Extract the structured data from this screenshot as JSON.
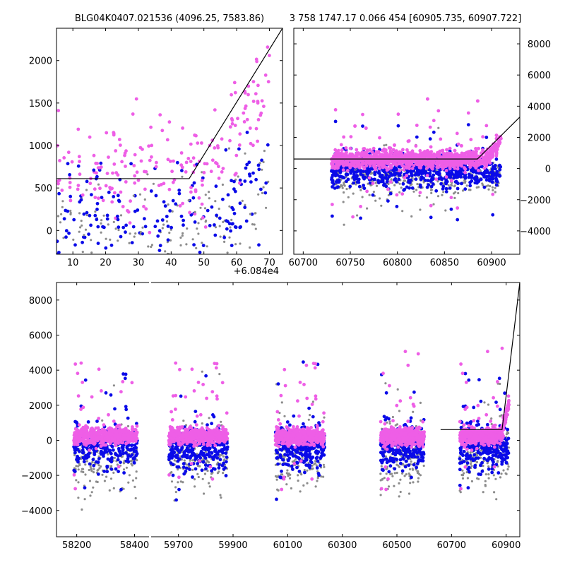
{
  "figure_title_left": "BLG04K0407.021536 (4096.25, 7583.86)",
  "figure_title_right": "3 758 1747.17 0.066 454 [60905.735, 60907.722]",
  "offset_text": "+6.084e4",
  "colors": {
    "pink": "#ee5ee6",
    "blue": "#0a0ae8",
    "gray": "#8c8c8c",
    "model": "#000000"
  },
  "chart_data": [
    {
      "id": "zoom",
      "type": "scatter",
      "title": "BLG04K0407.021536 (4096.25, 7583.86)",
      "xlim": [
        5,
        74
      ],
      "ylim": [
        -280,
        2380
      ],
      "x_offset": 60840,
      "xticks": [
        10,
        20,
        30,
        40,
        50,
        60,
        70
      ],
      "yticks": [
        0,
        500,
        1000,
        1500,
        2000
      ],
      "y_axis_side": "left",
      "model": {
        "x": [
          5,
          45.5,
          74
        ],
        "y": [
          610,
          610,
          2380
        ]
      }
    },
    {
      "id": "recent",
      "type": "scatter",
      "title": "3 758 1747.17 0.066 454 [60905.735, 60907.722]",
      "xlim": [
        60690,
        60930
      ],
      "ylim": [
        -5500,
        9000
      ],
      "xticks": [
        60700,
        60750,
        60800,
        60850,
        60900
      ],
      "yticks": [
        -4000,
        -2000,
        0,
        2000,
        4000,
        6000,
        8000
      ],
      "y_axis_side": "right",
      "model": {
        "x": [
          60690,
          60885,
          60930
        ],
        "y": [
          610,
          610,
          3300
        ]
      }
    },
    {
      "id": "full",
      "type": "scatter",
      "title": "",
      "ylim": [
        -5500,
        9000
      ],
      "yticks": [
        -4000,
        -2000,
        0,
        2000,
        4000,
        6000,
        8000
      ],
      "y_axis_side": "left",
      "segments": [
        {
          "xlim": [
            58130,
            58450
          ],
          "xticks": [
            58200,
            58400
          ]
        },
        {
          "xlim": [
            59600,
            60950
          ],
          "xticks": [
            59700,
            59900,
            60100,
            60300,
            60500,
            60700,
            60900
          ]
        }
      ],
      "seasons": [
        {
          "x0": 58190,
          "x1": 58410
        },
        {
          "x0": 59665,
          "x1": 59880
        },
        {
          "x0": 60055,
          "x1": 60235
        },
        {
          "x0": 60440,
          "x1": 60600
        },
        {
          "x0": 60730,
          "x1": 60910
        }
      ],
      "model": {
        "x": [
          60660,
          60885,
          60950
        ],
        "y": [
          610,
          610,
          9000
        ]
      }
    }
  ]
}
